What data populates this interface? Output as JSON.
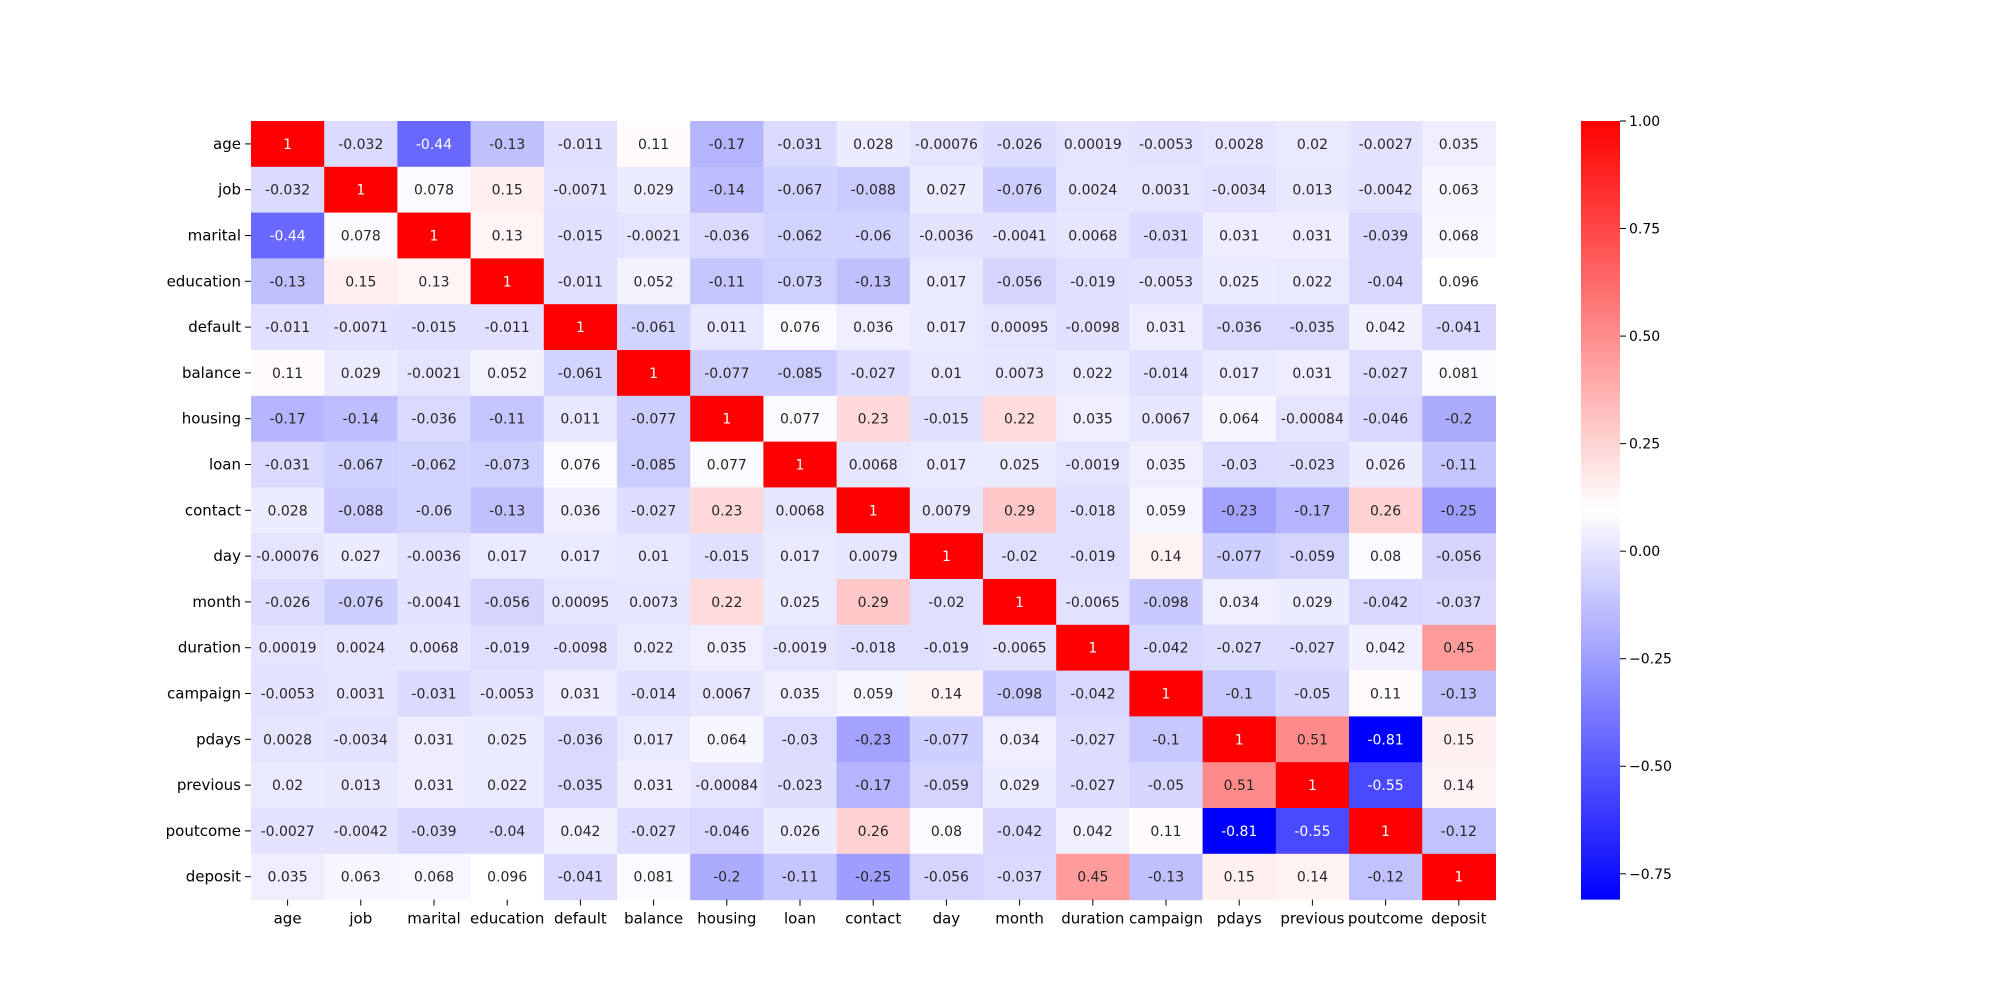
{
  "chart_data": {
    "type": "heatmap",
    "title": "",
    "xlabel": "",
    "ylabel": "",
    "labels": [
      "age",
      "job",
      "marital",
      "education",
      "default",
      "balance",
      "housing",
      "loan",
      "contact",
      "day",
      "month",
      "duration",
      "campaign",
      "pdays",
      "previous",
      "poutcome",
      "deposit"
    ],
    "values": [
      [
        "1",
        "-0.032",
        "-0.44",
        "-0.13",
        "-0.011",
        "0.11",
        "-0.17",
        "-0.031",
        "0.028",
        "-0.00076",
        "-0.026",
        "0.00019",
        "-0.0053",
        "0.0028",
        "0.02",
        "-0.0027",
        "0.035"
      ],
      [
        "-0.032",
        "1",
        "0.078",
        "0.15",
        "-0.0071",
        "0.029",
        "-0.14",
        "-0.067",
        "-0.088",
        "0.027",
        "-0.076",
        "0.0024",
        "0.0031",
        "-0.0034",
        "0.013",
        "-0.0042",
        "0.063"
      ],
      [
        "-0.44",
        "0.078",
        "1",
        "0.13",
        "-0.015",
        "-0.0021",
        "-0.036",
        "-0.062",
        "-0.06",
        "-0.0036",
        "-0.0041",
        "0.0068",
        "-0.031",
        "0.031",
        "0.031",
        "-0.039",
        "0.068"
      ],
      [
        "-0.13",
        "0.15",
        "0.13",
        "1",
        "-0.011",
        "0.052",
        "-0.11",
        "-0.073",
        "-0.13",
        "0.017",
        "-0.056",
        "-0.019",
        "-0.0053",
        "0.025",
        "0.022",
        "-0.04",
        "0.096"
      ],
      [
        "-0.011",
        "-0.0071",
        "-0.015",
        "-0.011",
        "1",
        "-0.061",
        "0.011",
        "0.076",
        "0.036",
        "0.017",
        "0.00095",
        "-0.0098",
        "0.031",
        "-0.036",
        "-0.035",
        "0.042",
        "-0.041"
      ],
      [
        "0.11",
        "0.029",
        "-0.0021",
        "0.052",
        "-0.061",
        "1",
        "-0.077",
        "-0.085",
        "-0.027",
        "0.01",
        "0.0073",
        "0.022",
        "-0.014",
        "0.017",
        "0.031",
        "-0.027",
        "0.081"
      ],
      [
        "-0.17",
        "-0.14",
        "-0.036",
        "-0.11",
        "0.011",
        "-0.077",
        "1",
        "0.077",
        "0.23",
        "-0.015",
        "0.22",
        "0.035",
        "0.0067",
        "0.064",
        "-0.00084",
        "-0.046",
        "-0.2"
      ],
      [
        "-0.031",
        "-0.067",
        "-0.062",
        "-0.073",
        "0.076",
        "-0.085",
        "0.077",
        "1",
        "0.0068",
        "0.017",
        "0.025",
        "-0.0019",
        "0.035",
        "-0.03",
        "-0.023",
        "0.026",
        "-0.11"
      ],
      [
        "0.028",
        "-0.088",
        "-0.06",
        "-0.13",
        "0.036",
        "-0.027",
        "0.23",
        "0.0068",
        "1",
        "0.0079",
        "0.29",
        "-0.018",
        "0.059",
        "-0.23",
        "-0.17",
        "0.26",
        "-0.25"
      ],
      [
        "-0.00076",
        "0.027",
        "-0.0036",
        "0.017",
        "0.017",
        "0.01",
        "-0.015",
        "0.017",
        "0.0079",
        "1",
        "-0.02",
        "-0.019",
        "0.14",
        "-0.077",
        "-0.059",
        "0.08",
        "-0.056"
      ],
      [
        "-0.026",
        "-0.076",
        "-0.0041",
        "-0.056",
        "0.00095",
        "0.0073",
        "0.22",
        "0.025",
        "0.29",
        "-0.02",
        "1",
        "-0.0065",
        "-0.098",
        "0.034",
        "0.029",
        "-0.042",
        "-0.037"
      ],
      [
        "0.00019",
        "0.0024",
        "0.0068",
        "-0.019",
        "-0.0098",
        "0.022",
        "0.035",
        "-0.0019",
        "-0.018",
        "-0.019",
        "-0.0065",
        "1",
        "-0.042",
        "-0.027",
        "-0.027",
        "0.042",
        "0.45"
      ],
      [
        "-0.0053",
        "0.0031",
        "-0.031",
        "-0.0053",
        "0.031",
        "-0.014",
        "0.0067",
        "0.035",
        "0.059",
        "0.14",
        "-0.098",
        "-0.042",
        "1",
        "-0.1",
        "-0.05",
        "0.11",
        "-0.13"
      ],
      [
        "0.0028",
        "-0.0034",
        "0.031",
        "0.025",
        "-0.036",
        "0.017",
        "0.064",
        "-0.03",
        "-0.23",
        "-0.077",
        "0.034",
        "-0.027",
        "-0.1",
        "1",
        "0.51",
        "-0.81",
        "0.15"
      ],
      [
        "0.02",
        "0.013",
        "0.031",
        "0.022",
        "-0.035",
        "0.031",
        "-0.00084",
        "-0.023",
        "-0.17",
        "-0.059",
        "0.029",
        "-0.027",
        "-0.05",
        "0.51",
        "1",
        "-0.55",
        "0.14"
      ],
      [
        "-0.0027",
        "-0.0042",
        "-0.039",
        "-0.04",
        "0.042",
        "-0.027",
        "-0.046",
        "0.026",
        "0.26",
        "0.08",
        "-0.042",
        "0.042",
        "0.11",
        "-0.81",
        "-0.55",
        "1",
        "-0.12"
      ],
      [
        "0.035",
        "0.063",
        "0.068",
        "0.096",
        "-0.041",
        "0.081",
        "-0.2",
        "-0.11",
        "-0.25",
        "-0.056",
        "-0.037",
        "0.45",
        "-0.13",
        "0.15",
        "0.14",
        "-0.12",
        "1"
      ]
    ],
    "colormap": "bwr",
    "vmin": -0.81,
    "vmax": 1,
    "colorbar": {
      "ticks": [
        "1.00",
        "0.75",
        "0.50",
        "0.25",
        "0.00",
        "−0.25",
        "−0.50",
        "−0.75"
      ],
      "tick_values": [
        1.0,
        0.75,
        0.5,
        0.25,
        0.0,
        -0.25,
        -0.5,
        -0.75
      ],
      "position": "right"
    },
    "colors": {
      "low": "#0000ff",
      "mid": "#ffffff",
      "high": "#ff0000"
    }
  }
}
